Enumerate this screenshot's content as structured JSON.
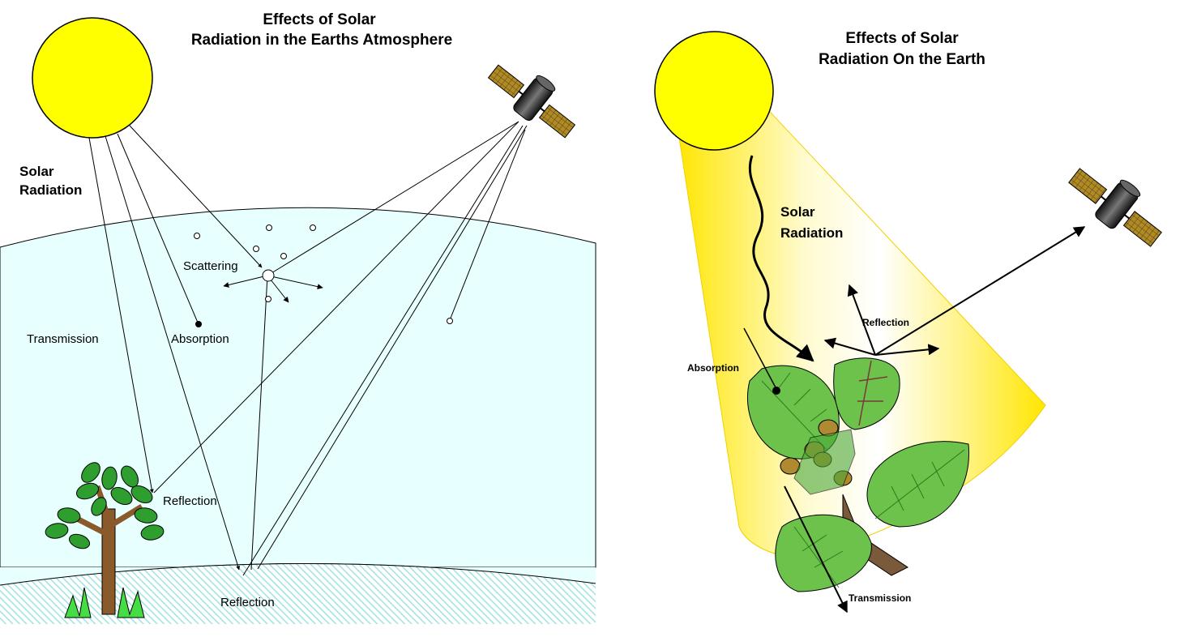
{
  "left_panel": {
    "title_line1": "Effects of Solar",
    "title_line2": "Radiation in the Earths Atmosphere",
    "solar_label_line1": "Solar",
    "solar_label_line2": "Radiation",
    "transmission": "Transmission",
    "absorption": "Absorption",
    "scattering": "Scattering",
    "reflection_tree": "Reflection",
    "reflection_ground": "Reflection"
  },
  "right_panel": {
    "title_line1": "Effects of Solar",
    "title_line2": "Radiation On the Earth",
    "solar_label_line1": "Solar",
    "solar_label_line2": "Radiation",
    "reflection": "Reflection",
    "absorption": "Absorption",
    "transmission": "Transmission"
  },
  "colors": {
    "sun": "#ffff00",
    "atmosphere": "#e8ffff",
    "ground_hatch": "#9fe3e3",
    "leaf": "#6cc24a",
    "leaf_dark": "#7a4a3a",
    "beam": "#ffee00",
    "satellite_body": "#222222",
    "satellite_panel": "#a08020"
  }
}
